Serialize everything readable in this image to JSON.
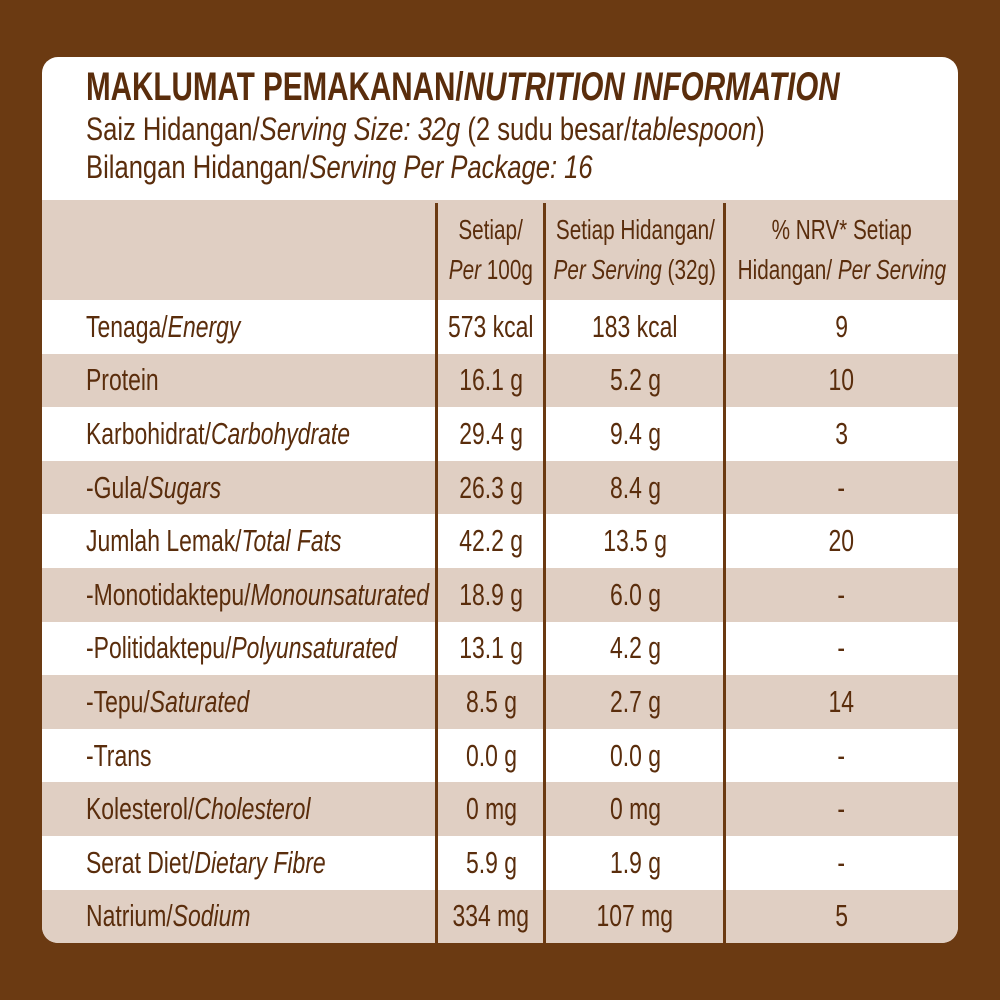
{
  "title": {
    "ms": "MAKLUMAT PEMAKANAN/",
    "en": "NUTRITION INFORMATION"
  },
  "serving_size": {
    "ms": "Saiz Hidangan/",
    "en": "Serving Size: 32g",
    "extra_a": " (2 sudu besar/",
    "extra_b": "tablespoon",
    ")": ")"
  },
  "servings": {
    "ms": "Bilangan Hidangan/",
    "en": "Serving Per Package: 16"
  },
  "headers": [
    {
      "l1": "Setiap/",
      "l2_it": "Per",
      "l2": " 100g"
    },
    {
      "l1": "Setiap Hidangan/",
      "l2_it": "Per Serving",
      "l2": " (32g)"
    },
    {
      "l1": "% NRV* Setiap",
      "l2": "Hidangan/ ",
      "l2_it": "Per Serving"
    }
  ],
  "rows": [
    {
      "ms": "Tenaga/",
      "en": "Energy",
      "per100": "573 kcal",
      "serving": "183 kcal",
      "nrv": "9"
    },
    {
      "ms": "Protein",
      "en": "",
      "per100": "16.1 g",
      "serving": "5.2 g",
      "nrv": "10"
    },
    {
      "ms": "Karbohidrat/",
      "en": "Carbohydrate",
      "per100": "29.4 g",
      "serving": "9.4 g",
      "nrv": "3"
    },
    {
      "ms": "-Gula/",
      "en": "Sugars",
      "per100": "26.3 g",
      "serving": "8.4 g",
      "nrv": "-"
    },
    {
      "ms": "Jumlah Lemak/",
      "en": "Total Fats",
      "per100": "42.2 g",
      "serving": "13.5 g",
      "nrv": "20"
    },
    {
      "ms": "-Monotidaktepu/",
      "en": "Monounsaturated",
      "per100": "18.9 g",
      "serving": "6.0 g",
      "nrv": "-"
    },
    {
      "ms": "-Politidaktepu/",
      "en": "Polyunsaturated",
      "per100": "13.1 g",
      "serving": "4.2 g",
      "nrv": "-"
    },
    {
      "ms": "-Tepu/",
      "en": "Saturated",
      "per100": "8.5 g",
      "serving": "2.7 g",
      "nrv": "14"
    },
    {
      "ms": "-Trans",
      "en": "",
      "per100": "0.0 g",
      "serving": "0.0 g",
      "nrv": "-"
    },
    {
      "ms": "Kolesterol/",
      "en": "Cholesterol",
      "per100": "0 mg",
      "serving": "0 mg",
      "nrv": "-"
    },
    {
      "ms": "Serat Diet/",
      "en": "Dietary Fibre",
      "per100": "5.9 g",
      "serving": "1.9 g",
      "nrv": "-"
    },
    {
      "ms": "Natrium/",
      "en": "Sodium",
      "per100": "334 mg",
      "serving": "107 mg",
      "nrv": "5"
    }
  ],
  "colors": {
    "brown": "#6b3a12",
    "text": "#5a2d0c",
    "band": "#e0cfc3"
  }
}
